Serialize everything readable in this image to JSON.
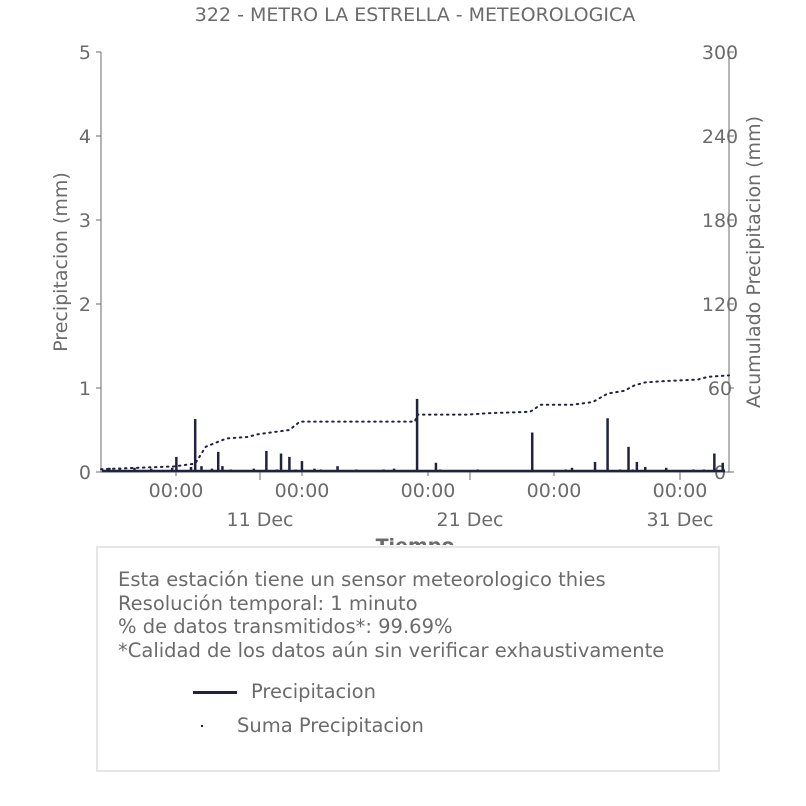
{
  "chart_data": {
    "type": "bar",
    "title": "322 - METRO LA ESTRELLA - METEOROLOGICA",
    "xlabel": "Tiempo",
    "ylabel": "Precipitacion (mm)",
    "y2label": "Acumulado Precipitacion (mm)",
    "ylim": [
      0,
      5
    ],
    "y2lim": [
      0,
      300
    ],
    "y_ticks": [
      "0",
      "1",
      "2",
      "3",
      "4",
      "5"
    ],
    "y2_ticks": [
      "0",
      "60",
      "120",
      "180",
      "240",
      "300"
    ],
    "xlim_days": [
      0,
      30
    ],
    "x_tick_labels_time": [
      "00:00",
      "00:00",
      "00:00",
      "00:00",
      "00:00"
    ],
    "x_tick_labels_date": [
      "11 Dec",
      "21 Dec",
      "31 Dec"
    ],
    "grid": false,
    "series": [
      {
        "name": "Precipitacion",
        "style": "line",
        "color": "#1f2340",
        "x": [
          0.4,
          0.9,
          1.6,
          2.4,
          3.4,
          3.6,
          4.3,
          4.5,
          4.8,
          5.3,
          5.6,
          5.8,
          6.2,
          7.3,
          7.9,
          8.4,
          8.6,
          9.0,
          9.3,
          9.6,
          10.2,
          10.5,
          10.9,
          11.3,
          12.2,
          12.8,
          13.5,
          14.0,
          14.3,
          15.1,
          16.0,
          16.2,
          17.2,
          18.0,
          18.3,
          20.6,
          21.3,
          22.2,
          22.5,
          23.0,
          23.6,
          24.2,
          24.8,
          25.0,
          25.2,
          25.4,
          25.6,
          26.0,
          27.0,
          28.3,
          28.5,
          28.8,
          29.3,
          29.7
        ],
        "y": [
          0.05,
          0.03,
          0.05,
          0.04,
          0.05,
          0.18,
          0.06,
          0.63,
          0.07,
          0.04,
          0.24,
          0.07,
          0.03,
          0.04,
          0.25,
          0.03,
          0.22,
          0.18,
          0.03,
          0.13,
          0.04,
          0.03,
          0.02,
          0.07,
          0.03,
          0.02,
          0.03,
          0.04,
          0.02,
          0.87,
          0.11,
          0.03,
          0.02,
          0.03,
          0.02,
          0.47,
          0.02,
          0.03,
          0.05,
          0.02,
          0.12,
          0.64,
          0.03,
          0.02,
          0.3,
          0.03,
          0.12,
          0.06,
          0.05,
          0.03,
          0.02,
          0.03,
          0.22,
          0.11
        ]
      },
      {
        "name": "Suma Precipitacion",
        "style": "dotted",
        "color": "#1f2340",
        "x": [
          0.0,
          3.5,
          4.0,
          4.5,
          5.0,
          5.5,
          6.0,
          7.0,
          7.5,
          8.0,
          9.0,
          9.5,
          12.0,
          15.0,
          15.1,
          17.5,
          18.5,
          20.5,
          21.0,
          22.5,
          23.0,
          23.5,
          24.2,
          25.0,
          25.5,
          26.0,
          27.0,
          28.5,
          29.0,
          30.0
        ],
        "y": [
          2,
          4,
          5,
          6,
          18,
          21,
          24,
          25,
          27,
          28,
          30,
          36,
          36,
          36,
          41,
          41,
          42,
          43,
          48,
          48,
          49,
          50,
          56,
          58,
          62,
          64,
          65,
          66,
          68,
          69
        ]
      }
    ]
  },
  "info": {
    "lines": [
      "Esta estación tiene un sensor meteorologico thies",
      "Resolución temporal: 1 minuto",
      "% de datos transmitidos*: 99.69%",
      "*Calidad de los datos aún sin verificar exhaustivamente"
    ],
    "legend": [
      {
        "label": "Precipitacion",
        "marker": "line"
      },
      {
        "label": "Suma Precipitacion",
        "marker": "dot"
      }
    ]
  },
  "colors": {
    "text": "#6b6b6b",
    "series": "#1f2340",
    "axis": "#6b6b6b",
    "box_border": "#e6e6e6"
  }
}
